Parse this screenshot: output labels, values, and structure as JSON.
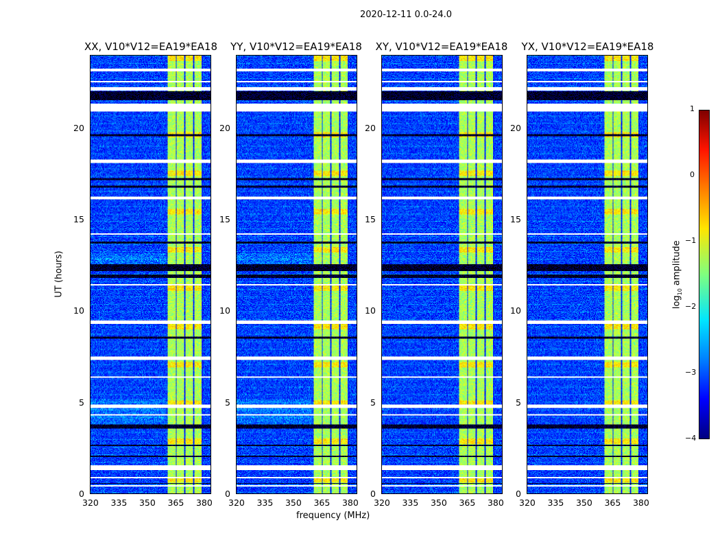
{
  "chart_data": {
    "type": "heatmap",
    "title": "2020-12-11 0.0-24.0",
    "xlabel": "frequency (MHz)",
    "ylabel": "UT (hours)",
    "xlim": [
      320,
      384
    ],
    "ylim": [
      0,
      24
    ],
    "xticks": [
      "320",
      "335",
      "350",
      "365",
      "380"
    ],
    "yticks": [
      "0",
      "5",
      "10",
      "15",
      "20"
    ],
    "panels": [
      {
        "title": "XX, V10*V12=EA19*EA18"
      },
      {
        "title": "YY, V10*V12=EA19*EA18"
      },
      {
        "title": "XY, V10*V12=EA19*EA18"
      },
      {
        "title": "YX, V10*V12=EA19*EA18"
      }
    ],
    "colorbar": {
      "label": "log",
      "label_sub": "10",
      "label_rest": " amplitude",
      "range": [
        -4,
        1
      ],
      "ticks": [
        "1",
        "0",
        "−1",
        "−2",
        "−3",
        "−4"
      ],
      "colormap": "jet"
    },
    "background_level": -3.1,
    "bright_band_mhz": [
      [
        361,
        365.3
      ],
      [
        365.8,
        369.8
      ],
      [
        370.3,
        374.5
      ],
      [
        375,
        379.2
      ]
    ],
    "bright_level": -1.3,
    "flagged_hours_white": [
      [
        23.15,
        23.3
      ],
      [
        22.55,
        22.62
      ],
      [
        22.1,
        22.3
      ],
      [
        20.95,
        21.4
      ],
      [
        18.15,
        18.3
      ],
      [
        16.15,
        16.3
      ],
      [
        14.2,
        14.26
      ],
      [
        11.4,
        11.5
      ],
      [
        9.3,
        9.5
      ],
      [
        7.35,
        7.5
      ],
      [
        6.35,
        6.45
      ],
      [
        4.7,
        4.9
      ],
      [
        4.3,
        4.38
      ],
      [
        1.3,
        1.55
      ],
      [
        0.85,
        0.92
      ],
      [
        0.4,
        0.46
      ]
    ],
    "flagged_hours_black": [
      [
        21.6,
        22.05
      ],
      [
        19.6,
        19.7
      ],
      [
        17.2,
        17.3
      ],
      [
        16.8,
        16.9
      ],
      [
        13.7,
        13.8
      ],
      [
        12.2,
        12.6
      ],
      [
        11.85,
        12.0
      ],
      [
        8.5,
        8.6
      ],
      [
        3.6,
        3.8
      ],
      [
        2.6,
        2.7
      ],
      [
        2.0,
        2.1
      ],
      [
        0.55,
        0.6
      ]
    ]
  }
}
